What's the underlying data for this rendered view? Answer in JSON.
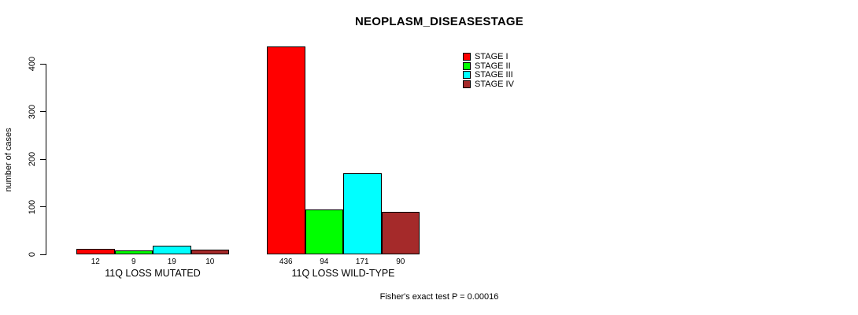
{
  "title": "NEOPLASM_DISEASESTAGE",
  "footer": "Fisher's exact test P = 0.00016",
  "colors": {
    "background": "#FFFFFF",
    "axis": "#000000",
    "bar_border": "#000000",
    "stage_1": "#FF0000",
    "stage_2": "#00FF00",
    "stage_3": "#00FFFF",
    "stage_4": "#A52A2A"
  },
  "chart_data": {
    "type": "bar",
    "title": "NEOPLASM_DISEASESTAGE",
    "xlabel": "",
    "ylabel": "number of cases",
    "ylim": [
      0,
      440
    ],
    "yticks": [
      0,
      100,
      200,
      300,
      400
    ],
    "grid": false,
    "legend_position": "top-right",
    "bar_value_labels_shown": true,
    "categories": [
      "11Q LOSS MUTATED",
      "11Q LOSS WILD-TYPE"
    ],
    "series": [
      {
        "name": "STAGE I",
        "color": "#FF0000",
        "values": [
          12,
          436
        ]
      },
      {
        "name": "STAGE II",
        "color": "#00FF00",
        "values": [
          9,
          94
        ]
      },
      {
        "name": "STAGE III",
        "color": "#00FFFF",
        "values": [
          19,
          171
        ]
      },
      {
        "name": "STAGE IV",
        "color": "#A52A2A",
        "values": [
          10,
          90
        ]
      }
    ],
    "annotation": "Fisher's exact test P = 0.00016"
  }
}
